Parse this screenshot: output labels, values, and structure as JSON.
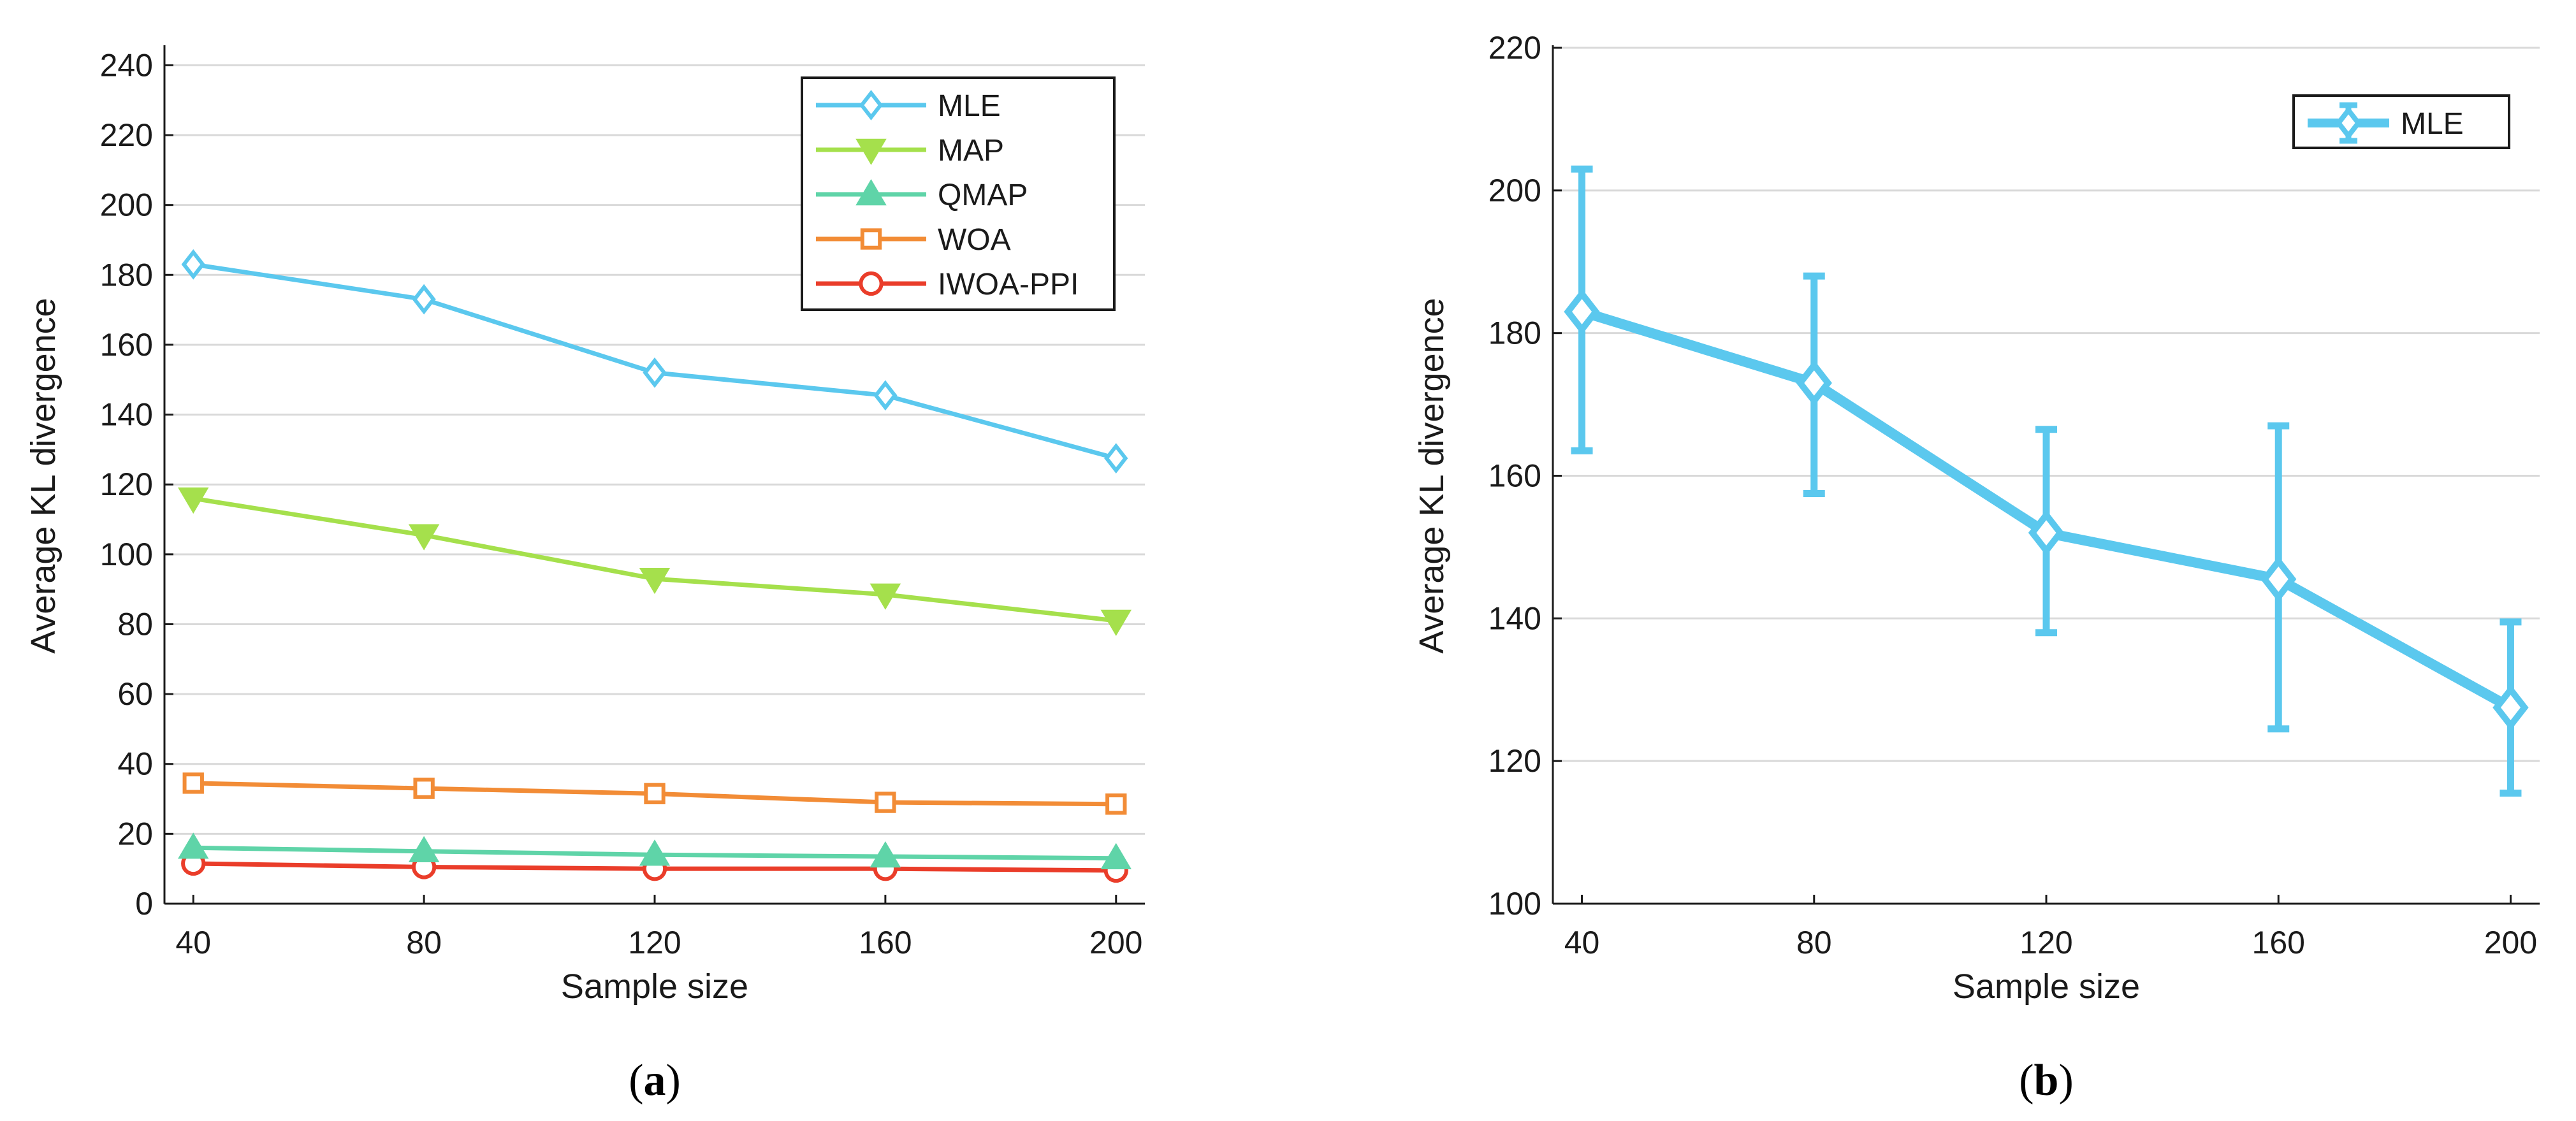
{
  "chart_data": [
    {
      "type": "line",
      "caption": {
        "open": "(",
        "letter": "a",
        "close": ")"
      },
      "xlabel": "Sample size",
      "ylabel": "Average KL divergence",
      "x": [
        40,
        80,
        120,
        160,
        200
      ],
      "xlim": [
        35,
        205
      ],
      "ylim": [
        0,
        245
      ],
      "yticks": [
        0,
        20,
        40,
        60,
        80,
        100,
        120,
        140,
        160,
        180,
        200,
        220,
        240
      ],
      "grid": true,
      "legend_position": "top-right",
      "series": [
        {
          "name": "MLE",
          "color": "#5bc8ee",
          "marker": "diamond",
          "values": [
            183,
            173,
            152,
            145.5,
            127.5
          ]
        },
        {
          "name": "MAP",
          "color": "#a5e04c",
          "marker": "triangle-down",
          "values": [
            116,
            105.5,
            93,
            88.5,
            81
          ]
        },
        {
          "name": "QMAP",
          "color": "#5fd4a8",
          "marker": "triangle-up",
          "values": [
            16,
            15,
            14,
            13.5,
            13
          ]
        },
        {
          "name": "WOA",
          "color": "#f28c36",
          "marker": "square",
          "values": [
            34.5,
            33,
            31.5,
            29,
            28.5
          ]
        },
        {
          "name": "IWOA-PPI",
          "color": "#ea3d2a",
          "marker": "circle",
          "values": [
            11.5,
            10.5,
            10,
            10,
            9.5
          ]
        }
      ]
    },
    {
      "type": "line",
      "caption": {
        "open": "(",
        "letter": "b",
        "close": ")"
      },
      "xlabel": "Sample size",
      "ylabel": "Average KL divergence",
      "x": [
        40,
        80,
        120,
        160,
        200
      ],
      "xlim": [
        35,
        205
      ],
      "ylim": [
        100,
        220
      ],
      "yticks": [
        100,
        120,
        140,
        160,
        180,
        200,
        220
      ],
      "grid": true,
      "legend_position": "top-right",
      "series": [
        {
          "name": "MLE",
          "color": "#5bc8ee",
          "marker": "diamond",
          "values": [
            183,
            173,
            152,
            145.5,
            127.5
          ],
          "err_low": [
            163.5,
            157.5,
            138,
            124.5,
            115.5
          ],
          "err_high": [
            203,
            188,
            166.5,
            167,
            139.5
          ]
        }
      ]
    }
  ]
}
